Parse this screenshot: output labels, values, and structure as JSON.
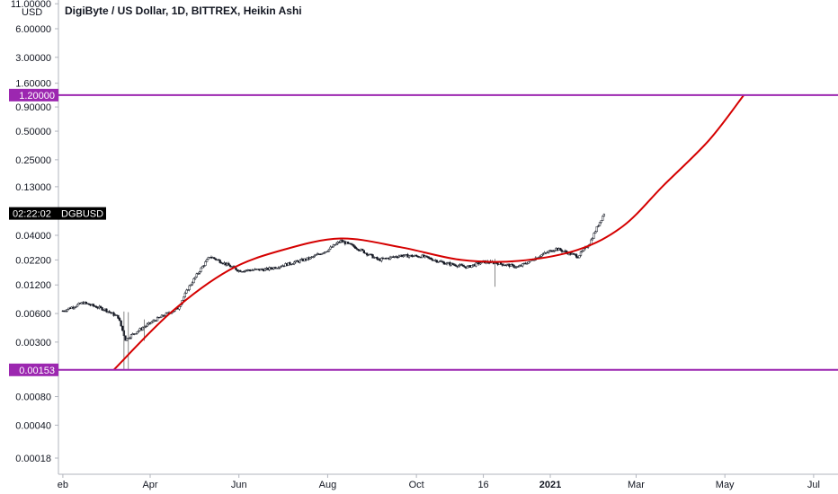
{
  "chart_data": {
    "type": "candlestick",
    "title": "DigiByte / US Dollar, 1D, BITTREX, Heikin Ashi",
    "y_unit": "USD",
    "y_scale": "log",
    "y_ticks": [
      "11.00000",
      "6.00000",
      "3.00000",
      "1.60000",
      "0.90000",
      "0.50000",
      "0.25000",
      "0.13000",
      "0.04000",
      "0.02200",
      "0.01200",
      "0.00600",
      "0.00300",
      "0.00080",
      "0.00040",
      "0.00018"
    ],
    "x_ticks": [
      {
        "label": "eb",
        "date": "2020-02-01"
      },
      {
        "label": "Apr",
        "date": "2020-04-01"
      },
      {
        "label": "Jun",
        "date": "2020-06-01"
      },
      {
        "label": "Aug",
        "date": "2020-08-01"
      },
      {
        "label": "Oct",
        "date": "2020-10-01"
      },
      {
        "label": "16",
        "date": "2020-11-16"
      },
      {
        "label": "2021",
        "date": "2021-01-01",
        "bold": true
      },
      {
        "label": "Mar",
        "date": "2021-03-01"
      },
      {
        "label": "May",
        "date": "2021-05-01"
      },
      {
        "label": "Jul",
        "date": "2021-07-01"
      }
    ],
    "price_keypoints": [
      {
        "date": "2020-02-01",
        "close": 0.0064
      },
      {
        "date": "2020-02-15",
        "close": 0.0078
      },
      {
        "date": "2020-03-01",
        "close": 0.0066
      },
      {
        "date": "2020-03-10",
        "close": 0.0055
      },
      {
        "date": "2020-03-15",
        "close": 0.0032
      },
      {
        "date": "2020-03-22",
        "close": 0.0038
      },
      {
        "date": "2020-04-05",
        "close": 0.0052
      },
      {
        "date": "2020-04-20",
        "close": 0.0068
      },
      {
        "date": "2020-04-27",
        "close": 0.011
      },
      {
        "date": "2020-05-05",
        "close": 0.017
      },
      {
        "date": "2020-05-12",
        "close": 0.024
      },
      {
        "date": "2020-05-20",
        "close": 0.021
      },
      {
        "date": "2020-06-01",
        "close": 0.017
      },
      {
        "date": "2020-06-20",
        "close": 0.0175
      },
      {
        "date": "2020-07-05",
        "close": 0.02
      },
      {
        "date": "2020-07-20",
        "close": 0.023
      },
      {
        "date": "2020-08-01",
        "close": 0.028
      },
      {
        "date": "2020-08-10",
        "close": 0.035
      },
      {
        "date": "2020-08-20",
        "close": 0.03
      },
      {
        "date": "2020-09-05",
        "close": 0.022
      },
      {
        "date": "2020-09-20",
        "close": 0.0245
      },
      {
        "date": "2020-10-05",
        "close": 0.024
      },
      {
        "date": "2020-10-20",
        "close": 0.0205
      },
      {
        "date": "2020-11-05",
        "close": 0.0185
      },
      {
        "date": "2020-11-16",
        "close": 0.021
      },
      {
        "date": "2020-11-25",
        "close": 0.0205
      },
      {
        "date": "2020-12-10",
        "close": 0.0185
      },
      {
        "date": "2020-12-25",
        "close": 0.0245
      },
      {
        "date": "2021-01-05",
        "close": 0.029
      },
      {
        "date": "2021-01-20",
        "close": 0.024
      },
      {
        "date": "2021-01-28",
        "close": 0.033
      },
      {
        "date": "2021-02-02",
        "close": 0.048
      },
      {
        "date": "2021-02-07",
        "close": 0.068
      }
    ],
    "horizontal_lines": [
      {
        "value": "1.20000",
        "color": "#9c27b0"
      },
      {
        "value": "0.00153",
        "color": "#9c27b0"
      }
    ],
    "curve": {
      "color": "#d50000",
      "points": [
        {
          "date": "2020-03-07",
          "value": 0.00153
        },
        {
          "date": "2020-04-15",
          "value": 0.0061
        },
        {
          "date": "2020-05-25",
          "value": 0.0171
        },
        {
          "date": "2020-07-01",
          "value": 0.028
        },
        {
          "date": "2020-08-10",
          "value": 0.037
        },
        {
          "date": "2020-09-20",
          "value": 0.03
        },
        {
          "date": "2020-11-01",
          "value": 0.022
        },
        {
          "date": "2020-12-10",
          "value": 0.0215
        },
        {
          "date": "2021-01-20",
          "value": 0.0282
        },
        {
          "date": "2021-02-20",
          "value": 0.05
        },
        {
          "date": "2021-03-20",
          "value": 0.135
        },
        {
          "date": "2021-04-20",
          "value": 0.4
        },
        {
          "date": "2021-05-14",
          "value": 1.2
        }
      ]
    },
    "price_label": {
      "time": "02:22:02",
      "symbol": "DGBUSD"
    },
    "colors": {
      "line": "#9c27b0",
      "curve": "#d50000",
      "candle": "#131722"
    }
  }
}
